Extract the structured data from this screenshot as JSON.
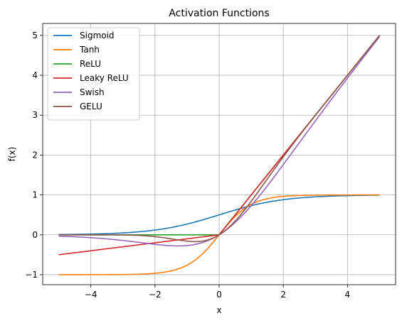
{
  "chart_data": {
    "type": "line",
    "title": "Activation Functions",
    "xlabel": "x",
    "ylabel": "f(x)",
    "xlim": [
      -5.5,
      5.5
    ],
    "ylim": [
      -1.25,
      5.3
    ],
    "xticks": [
      -4,
      -2,
      0,
      2,
      4
    ],
    "yticks": [
      -1,
      0,
      1,
      2,
      3,
      4,
      5
    ],
    "xtick_labels": [
      "−4",
      "−2",
      "0",
      "2",
      "4"
    ],
    "ytick_labels": [
      "−1",
      "0",
      "1",
      "2",
      "3",
      "4",
      "5"
    ],
    "grid": true,
    "legend_position": "top-left",
    "x_range": [
      -5,
      5
    ],
    "series": [
      {
        "name": "Sigmoid",
        "function": "sigmoid",
        "color": "#1f77b4"
      },
      {
        "name": "Tanh",
        "function": "tanh",
        "color": "#ff7f0e"
      },
      {
        "name": "ReLU",
        "function": "relu",
        "color": "#2ca02c"
      },
      {
        "name": "Leaky ReLU",
        "function": "leaky_relu",
        "alpha": 0.1,
        "color": "#d62728"
      },
      {
        "name": "Swish",
        "function": "swish",
        "color": "#9467bd"
      },
      {
        "name": "GELU",
        "function": "gelu",
        "color": "#8c564b"
      }
    ]
  }
}
